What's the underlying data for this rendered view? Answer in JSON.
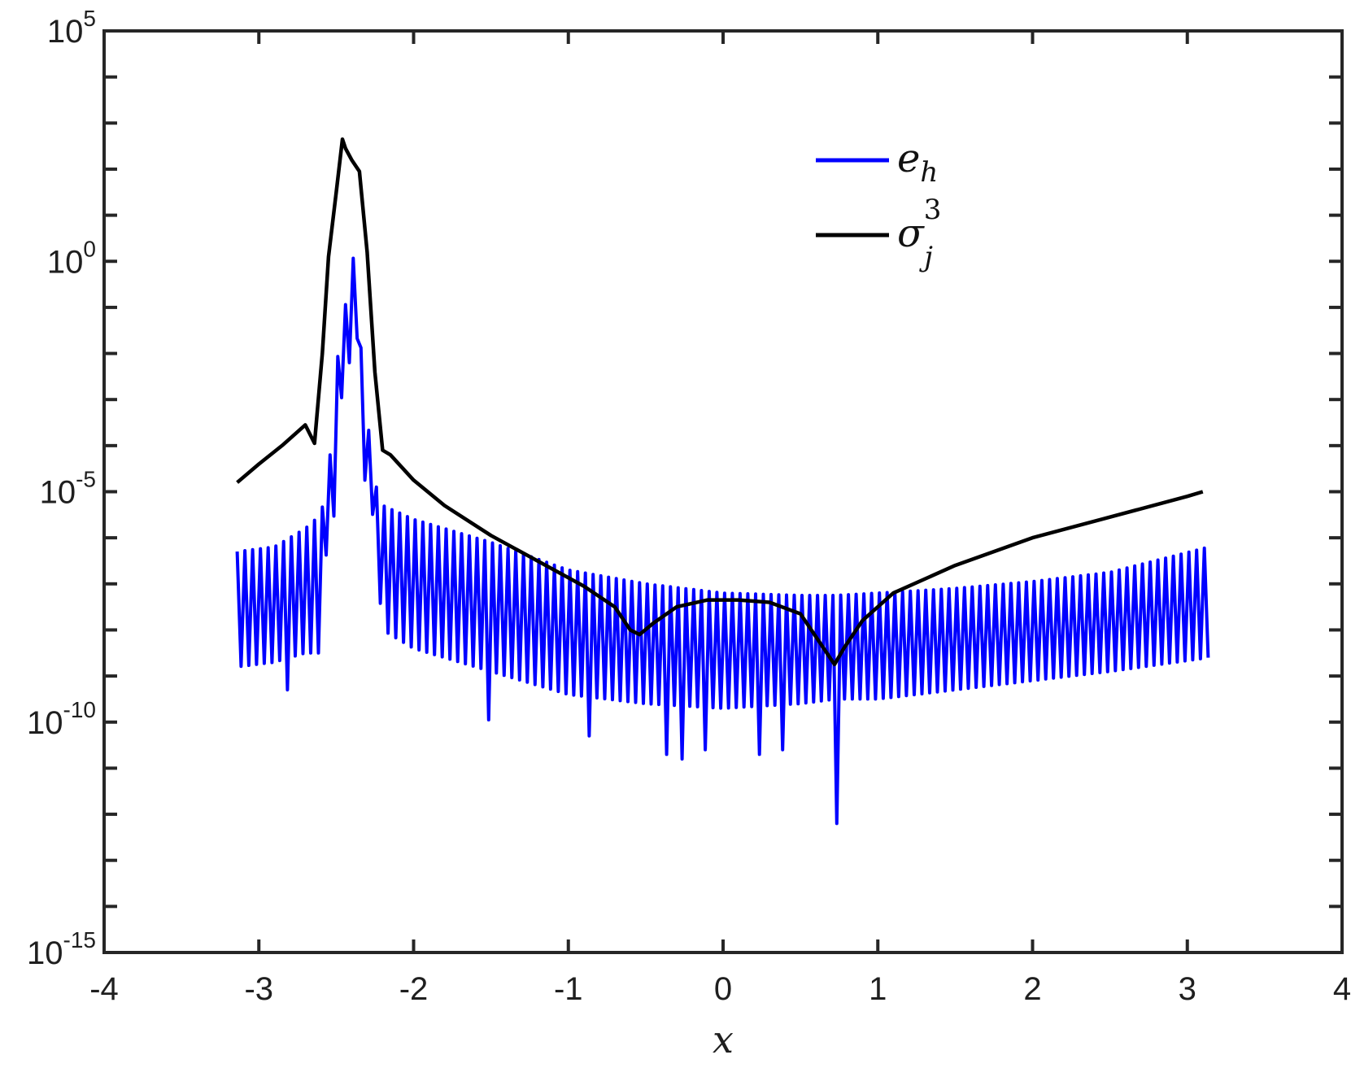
{
  "chart_data": {
    "type": "line",
    "xlabel": "x",
    "ylabel": "",
    "xlim": [
      -4,
      4
    ],
    "ylim_log10": [
      -15,
      5
    ],
    "yscale": "log",
    "grid": false,
    "legend_position": "top-right",
    "x_ticks": [
      -4,
      -3,
      -2,
      -1,
      0,
      1,
      2,
      3,
      4
    ],
    "x_tick_labels": [
      "-4",
      "-3",
      "-2",
      "-1",
      "0",
      "1",
      "2",
      "3",
      "4"
    ],
    "y_ticks_log10": [
      5,
      0,
      -5,
      -10,
      -15
    ],
    "y_tick_labels": [
      {
        "base": "10",
        "exp": "5"
      },
      {
        "base": "10",
        "exp": "0"
      },
      {
        "base": "10",
        "exp": "-5"
      },
      {
        "base": "10",
        "exp": "-10"
      },
      {
        "base": "10",
        "exp": "-15"
      }
    ],
    "series": [
      {
        "name": "e_h",
        "legend": {
          "base": "e",
          "sub": "h",
          "sup": ""
        },
        "color": "#0000ff",
        "style": "oscillating",
        "x_range": [
          -3.14,
          3.14
        ],
        "period": 0.05,
        "upper_envelope": [
          [
            -3.14,
            -6.3
          ],
          [
            -2.9,
            -6.2
          ],
          [
            -2.7,
            -5.8
          ],
          [
            -2.6,
            -5.5
          ],
          [
            -2.57,
            -5.0
          ],
          [
            -2.55,
            -4.6
          ],
          [
            -2.5,
            -2.6
          ],
          [
            -2.47,
            -1.0
          ],
          [
            -2.42,
            -0.9
          ],
          [
            -2.4,
            0.1
          ],
          [
            -2.37,
            0.0
          ],
          [
            -2.33,
            -2.5
          ],
          [
            -2.3,
            -3.2
          ],
          [
            -2.27,
            -4.6
          ],
          [
            -2.2,
            -5.3
          ],
          [
            -2.0,
            -5.6
          ],
          [
            -1.5,
            -6.1
          ],
          [
            -1.0,
            -6.7
          ],
          [
            -0.5,
            -7.0
          ],
          [
            0.0,
            -7.2
          ],
          [
            0.5,
            -7.25
          ],
          [
            0.73,
            -7.25
          ],
          [
            1.0,
            -7.2
          ],
          [
            1.5,
            -7.1
          ],
          [
            2.0,
            -6.95
          ],
          [
            2.5,
            -6.75
          ],
          [
            3.14,
            -6.2
          ]
        ],
        "lower_envelope": [
          [
            -3.14,
            -8.8
          ],
          [
            -2.9,
            -8.7
          ],
          [
            -2.7,
            -8.5
          ],
          [
            -2.6,
            -8.5
          ],
          [
            -2.57,
            -6.4
          ],
          [
            -2.55,
            -6.3
          ],
          [
            -2.5,
            -5.2
          ],
          [
            -2.47,
            -3.0
          ],
          [
            -2.42,
            -2.6
          ],
          [
            -2.4,
            -1.0
          ],
          [
            -2.37,
            -1.2
          ],
          [
            -2.33,
            -5.0
          ],
          [
            -2.3,
            -4.5
          ],
          [
            -2.27,
            -5.3
          ],
          [
            -2.2,
            -8.0
          ],
          [
            -2.0,
            -8.4
          ],
          [
            -1.5,
            -8.9
          ],
          [
            -1.0,
            -9.4
          ],
          [
            -0.5,
            -9.6
          ],
          [
            0.0,
            -9.7
          ],
          [
            0.5,
            -9.6
          ],
          [
            0.73,
            -9.5
          ],
          [
            1.0,
            -9.5
          ],
          [
            1.5,
            -9.3
          ],
          [
            2.0,
            -9.1
          ],
          [
            2.5,
            -8.9
          ],
          [
            3.14,
            -8.6
          ]
        ],
        "dips": [
          [
            -2.8,
            -9.3
          ],
          [
            -1.53,
            -9.95
          ],
          [
            -0.85,
            -10.3
          ],
          [
            -0.37,
            -10.7
          ],
          [
            -0.25,
            -10.8
          ],
          [
            -0.1,
            -10.6
          ],
          [
            0.25,
            -10.7
          ],
          [
            0.38,
            -10.6
          ],
          [
            0.73,
            -12.2
          ]
        ]
      },
      {
        "name": "σ_j^3",
        "legend": {
          "base": "σ",
          "sub": "j",
          "sup": "3"
        },
        "color": "#000000",
        "style": "line",
        "points": [
          [
            -3.14,
            -4.8
          ],
          [
            -3.0,
            -4.4
          ],
          [
            -2.85,
            -4.0
          ],
          [
            -2.7,
            -3.55
          ],
          [
            -2.64,
            -3.95
          ],
          [
            -2.59,
            -2.0
          ],
          [
            -2.55,
            0.1
          ],
          [
            -2.5,
            1.5
          ],
          [
            -2.46,
            2.65
          ],
          [
            -2.44,
            2.45
          ],
          [
            -2.4,
            2.2
          ],
          [
            -2.35,
            1.95
          ],
          [
            -2.3,
            0.2
          ],
          [
            -2.25,
            -2.4
          ],
          [
            -2.2,
            -4.1
          ],
          [
            -2.15,
            -4.2
          ],
          [
            -2.0,
            -4.75
          ],
          [
            -1.8,
            -5.3
          ],
          [
            -1.5,
            -5.95
          ],
          [
            -1.2,
            -6.5
          ],
          [
            -0.9,
            -7.05
          ],
          [
            -0.7,
            -7.5
          ],
          [
            -0.6,
            -8.0
          ],
          [
            -0.54,
            -8.1
          ],
          [
            -0.45,
            -7.85
          ],
          [
            -0.3,
            -7.5
          ],
          [
            -0.1,
            -7.35
          ],
          [
            0.1,
            -7.35
          ],
          [
            0.3,
            -7.4
          ],
          [
            0.5,
            -7.65
          ],
          [
            0.63,
            -8.3
          ],
          [
            0.72,
            -8.75
          ],
          [
            0.78,
            -8.4
          ],
          [
            0.9,
            -7.8
          ],
          [
            1.1,
            -7.2
          ],
          [
            1.5,
            -6.6
          ],
          [
            2.0,
            -6.0
          ],
          [
            2.5,
            -5.55
          ],
          [
            3.0,
            -5.1
          ],
          [
            3.1,
            -5.0
          ]
        ]
      }
    ]
  }
}
